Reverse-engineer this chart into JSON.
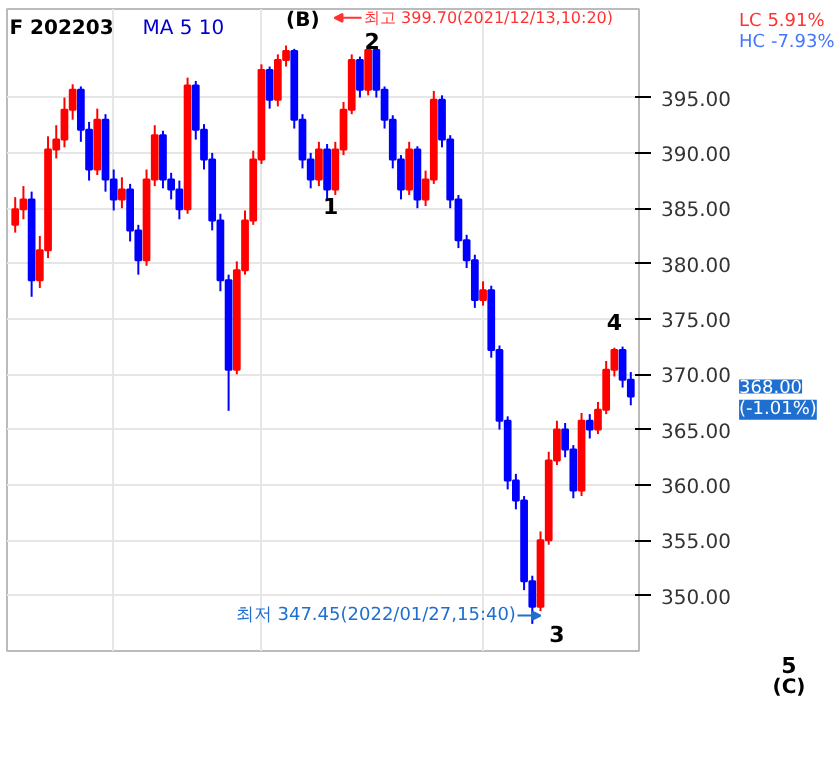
{
  "chart_data": {
    "type": "candlestick",
    "title": "F 202203",
    "legend_title": "MA 5 10",
    "categories": [
      null,
      null,
      null,
      null,
      null,
      null,
      null,
      null,
      null,
      null,
      null,
      null,
      null,
      null,
      null,
      null,
      null,
      null,
      null,
      null,
      null,
      null,
      null,
      null,
      null,
      null,
      null,
      null,
      null,
      null,
      null,
      null,
      null,
      null,
      null,
      null,
      null,
      null,
      null,
      null,
      null,
      null,
      null,
      null,
      null,
      null,
      null,
      null,
      null,
      null,
      null,
      null,
      null,
      null,
      null,
      null,
      null,
      null,
      null,
      null,
      null,
      null,
      null,
      null,
      null,
      null,
      null,
      null,
      null,
      null,
      null,
      null,
      null,
      null,
      null,
      null
    ],
    "ohlc": [
      [
        383.5,
        386.0,
        382.8,
        384.9
      ],
      [
        384.9,
        387.0,
        384.0,
        385.8
      ],
      [
        385.8,
        386.5,
        377.0,
        378.5
      ],
      [
        378.5,
        382.5,
        377.8,
        381.2
      ],
      [
        381.2,
        391.5,
        380.5,
        390.3
      ],
      [
        390.3,
        392.5,
        389.5,
        391.2
      ],
      [
        391.2,
        395.0,
        390.5,
        393.9
      ],
      [
        393.9,
        396.2,
        393.0,
        395.7
      ],
      [
        395.7,
        396.0,
        391.0,
        392.1
      ],
      [
        392.1,
        392.8,
        387.5,
        388.5
      ],
      [
        388.5,
        394.0,
        388.0,
        393.0
      ],
      [
        393.0,
        393.5,
        386.5,
        387.6
      ],
      [
        387.6,
        388.5,
        384.8,
        385.8
      ],
      [
        385.8,
        387.8,
        385.0,
        386.7
      ],
      [
        386.7,
        387.2,
        382.0,
        383.0
      ],
      [
        383.0,
        383.5,
        379.0,
        380.3
      ],
      [
        380.3,
        388.5,
        379.8,
        387.6
      ],
      [
        387.6,
        392.5,
        387.0,
        391.6
      ],
      [
        391.6,
        392.0,
        386.8,
        387.6
      ],
      [
        387.6,
        388.2,
        385.8,
        386.7
      ],
      [
        386.7,
        387.5,
        384.0,
        384.9
      ],
      [
        384.9,
        396.8,
        384.5,
        396.1
      ],
      [
        396.1,
        396.5,
        391.2,
        392.1
      ],
      [
        392.1,
        392.6,
        388.5,
        389.4
      ],
      [
        389.4,
        390.0,
        383.0,
        383.9
      ],
      [
        383.9,
        384.5,
        377.5,
        378.5
      ],
      [
        378.5,
        379.0,
        366.7,
        370.4
      ],
      [
        370.4,
        380.2,
        370.0,
        379.4
      ],
      [
        379.4,
        384.8,
        379.0,
        383.9
      ],
      [
        383.9,
        390.2,
        383.5,
        389.4
      ],
      [
        389.4,
        398.0,
        389.0,
        397.5
      ],
      [
        397.5,
        397.8,
        394.0,
        394.8
      ],
      [
        394.8,
        398.9,
        394.2,
        398.4
      ],
      [
        398.4,
        399.7,
        397.8,
        399.2
      ],
      [
        399.2,
        399.4,
        392.2,
        393.0
      ],
      [
        393.0,
        393.5,
        388.6,
        389.4
      ],
      [
        389.4,
        390.0,
        386.8,
        387.6
      ],
      [
        387.6,
        391.0,
        387.0,
        390.3
      ],
      [
        390.3,
        390.8,
        385.8,
        386.7
      ],
      [
        386.7,
        391.0,
        386.2,
        390.3
      ],
      [
        390.3,
        394.6,
        389.8,
        393.9
      ],
      [
        393.9,
        398.9,
        393.5,
        398.4
      ],
      [
        398.4,
        398.7,
        395.0,
        395.7
      ],
      [
        395.7,
        399.6,
        395.2,
        399.3
      ],
      [
        399.3,
        399.5,
        395.0,
        395.7
      ],
      [
        395.7,
        396.0,
        392.2,
        393.0
      ],
      [
        393.0,
        393.4,
        388.6,
        389.4
      ],
      [
        389.4,
        389.8,
        385.8,
        386.7
      ],
      [
        386.7,
        391.0,
        386.2,
        390.3
      ],
      [
        390.3,
        390.6,
        385.0,
        385.8
      ],
      [
        385.8,
        388.4,
        385.2,
        387.6
      ],
      [
        387.6,
        395.6,
        387.2,
        394.8
      ],
      [
        394.8,
        395.2,
        390.5,
        391.2
      ],
      [
        391.2,
        391.6,
        385.0,
        385.8
      ],
      [
        385.8,
        386.2,
        381.4,
        382.1
      ],
      [
        382.1,
        382.6,
        379.6,
        380.3
      ],
      [
        380.3,
        380.8,
        376.0,
        376.7
      ],
      [
        376.7,
        378.4,
        376.2,
        377.6
      ],
      [
        377.6,
        378.0,
        371.5,
        372.2
      ],
      [
        372.2,
        372.6,
        365.0,
        365.8
      ],
      [
        365.8,
        366.2,
        359.6,
        360.4
      ],
      [
        360.4,
        361.0,
        357.8,
        358.6
      ],
      [
        358.6,
        359.0,
        350.5,
        351.3
      ],
      [
        351.3,
        351.8,
        347.45,
        349.0
      ],
      [
        349.0,
        355.8,
        348.6,
        355.0
      ],
      [
        355.0,
        363.0,
        354.6,
        362.2
      ],
      [
        362.2,
        365.8,
        361.8,
        365.0
      ],
      [
        365.0,
        365.6,
        362.5,
        363.2
      ],
      [
        363.2,
        363.6,
        358.8,
        359.5
      ],
      [
        359.5,
        366.5,
        359.0,
        365.8
      ],
      [
        365.8,
        366.4,
        364.2,
        365.0
      ],
      [
        365.0,
        367.5,
        364.6,
        366.8
      ],
      [
        366.8,
        371.2,
        366.4,
        370.4
      ],
      [
        370.4,
        372.4,
        369.8,
        372.2
      ],
      [
        372.2,
        372.5,
        368.8,
        369.5
      ],
      [
        369.5,
        370.2,
        367.2,
        368.0
      ]
    ],
    "colors": [
      "#ff0000",
      "#ff0000",
      "#0000ff",
      "#ff0000",
      "#ff0000",
      "#ff0000",
      "#ff0000",
      "#ff0000",
      "#0000ff",
      "#0000ff",
      "#ff0000",
      "#0000ff",
      "#0000ff",
      "#ff0000",
      "#0000ff",
      "#0000ff",
      "#ff0000",
      "#ff0000",
      "#0000ff",
      "#0000ff",
      "#0000ff",
      "#ff0000",
      "#0000ff",
      "#0000ff",
      "#0000ff",
      "#0000ff",
      "#0000ff",
      "#ff0000",
      "#ff0000",
      "#ff0000",
      "#ff0000",
      "#0000ff",
      "#ff0000",
      "#ff0000",
      "#0000ff",
      "#0000ff",
      "#0000ff",
      "#ff0000",
      "#0000ff",
      "#ff0000",
      "#ff0000",
      "#ff0000",
      "#0000ff",
      "#ff0000",
      "#0000ff",
      "#0000ff",
      "#0000ff",
      "#0000ff",
      "#ff0000",
      "#0000ff",
      "#ff0000",
      "#ff0000",
      "#0000ff",
      "#0000ff",
      "#0000ff",
      "#0000ff",
      "#0000ff",
      "#ff0000",
      "#0000ff",
      "#0000ff",
      "#0000ff",
      "#0000ff",
      "#0000ff",
      "#0000ff",
      "#ff0000",
      "#ff0000",
      "#ff0000",
      "#0000ff",
      "#0000ff",
      "#ff0000",
      "#0000ff",
      "#ff0000",
      "#ff0000",
      "#ff0000",
      "#0000ff",
      "#0000ff"
    ],
    "ylim": [
      345,
      403
    ],
    "yticks": [
      {
        "value": 350,
        "label": "350.00"
      },
      {
        "value": 355,
        "label": "355.00"
      },
      {
        "value": 360,
        "label": "360.00"
      },
      {
        "value": 365,
        "label": "365.00"
      },
      {
        "value": 370,
        "label": "370.00"
      },
      {
        "value": 375,
        "label": "375.00"
      },
      {
        "value": 380,
        "label": "380.00"
      },
      {
        "value": 385,
        "label": "385.00"
      },
      {
        "value": 390,
        "label": "390.00"
      },
      {
        "value": 395,
        "label": "395.00"
      }
    ],
    "grid": true,
    "annotations": [
      "(B)",
      "최고 399.70(2021/12/13,10:20)",
      "1",
      "2",
      "3",
      "4",
      "5",
      "(C)",
      "최저 347.45(2022/01/27,15:40)",
      "LC 5.91%",
      "HC -7.93%",
      "368.00",
      "(-1.01%)"
    ]
  }
}
